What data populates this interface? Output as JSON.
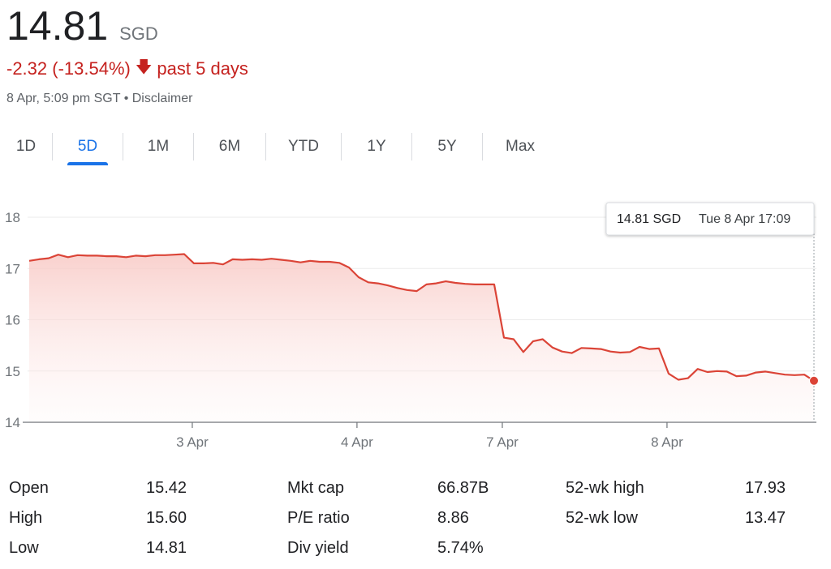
{
  "quote": {
    "price": "14.81",
    "currency": "SGD",
    "change_text": "-2.32 (-13.54%)",
    "arrow": "🡇",
    "period_text": "past 5 days",
    "timestamp": "8 Apr, 5:09 pm SGT",
    "separator": "•",
    "disclaimer": "Disclaimer",
    "down_color": "#c5221f"
  },
  "tabs": [
    {
      "label": "1D"
    },
    {
      "label": "5D",
      "active": true
    },
    {
      "label": "1M"
    },
    {
      "label": "6M"
    },
    {
      "label": "YTD"
    },
    {
      "label": "1Y"
    },
    {
      "label": "5Y"
    },
    {
      "label": "Max"
    }
  ],
  "chart_data": {
    "type": "area",
    "title": "",
    "xlabel": "",
    "ylabel": "",
    "ylim": [
      14,
      18
    ],
    "yticks": [
      "14",
      "15",
      "16",
      "17",
      "18"
    ],
    "xticks": [
      "3 Apr",
      "4 Apr",
      "7 Apr",
      "8 Apr"
    ],
    "line_color": "#db4437",
    "grid": true,
    "tooltip": {
      "price": "14.81 SGD",
      "time": "Tue 8 Apr 17:09"
    },
    "series": [
      {
        "name": "Price",
        "values": [
          17.15,
          17.18,
          17.2,
          17.27,
          17.22,
          17.26,
          17.25,
          17.25,
          17.24,
          17.24,
          17.22,
          17.25,
          17.24,
          17.26,
          17.26,
          17.27,
          17.28,
          17.1,
          17.1,
          17.11,
          17.08,
          17.18,
          17.17,
          17.18,
          17.17,
          17.19,
          17.17,
          17.15,
          17.12,
          17.15,
          17.13,
          17.13,
          17.11,
          17.02,
          16.83,
          16.73,
          16.71,
          16.67,
          16.62,
          16.58,
          16.56,
          16.69,
          16.71,
          16.75,
          16.72,
          16.7,
          16.69,
          16.69,
          16.69,
          15.65,
          15.62,
          15.37,
          15.58,
          15.62,
          15.46,
          15.38,
          15.35,
          15.45,
          15.44,
          15.43,
          15.38,
          15.36,
          15.37,
          15.47,
          15.43,
          15.44,
          14.95,
          14.83,
          14.86,
          15.04,
          14.98,
          15.0,
          14.99,
          14.9,
          14.91,
          14.97,
          14.99,
          14.96,
          14.93,
          14.92,
          14.93,
          14.81
        ]
      }
    ]
  },
  "stats": [
    {
      "label": "Open",
      "value": "15.42"
    },
    {
      "label": "High",
      "value": "15.60"
    },
    {
      "label": "Low",
      "value": "14.81"
    },
    {
      "label": "Mkt cap",
      "value": "66.87B"
    },
    {
      "label": "P/E ratio",
      "value": "8.86"
    },
    {
      "label": "Div yield",
      "value": "5.74%"
    },
    {
      "label": "52-wk high",
      "value": "17.93"
    },
    {
      "label": "52-wk low",
      "value": "13.47"
    }
  ]
}
